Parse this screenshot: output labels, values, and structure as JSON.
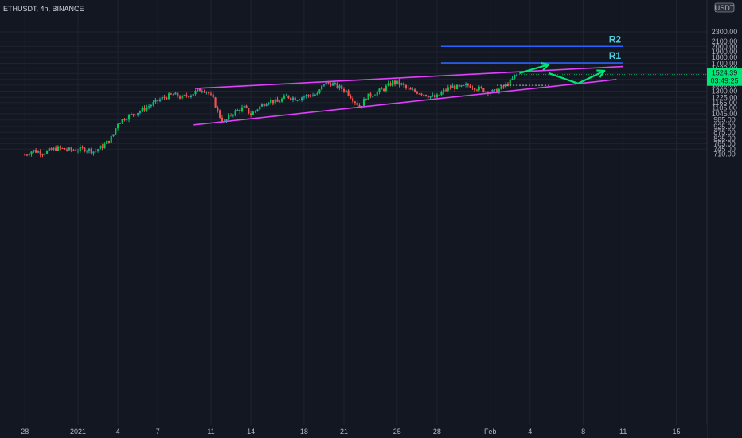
{
  "header": {
    "symbol_line": "ETHUSDT, 4h, BINANCE"
  },
  "chart_data": {
    "type": "candlestick",
    "title": "ETHUSDT, 4h, BINANCE",
    "currency": "USDT",
    "y_scale": "log",
    "ylim": [
      680,
      2550
    ],
    "y_ticks": [
      2300,
      2100,
      2000,
      1900,
      1800,
      1700,
      1620,
      1540,
      1460,
      1380,
      1300,
      1225,
      1165,
      1105,
      1045,
      985,
      925,
      875,
      825,
      785,
      745,
      710
    ],
    "x_ticks": [
      {
        "label": "28",
        "day": -4
      },
      {
        "label": "2021",
        "day": 0
      },
      {
        "label": "4",
        "day": 3
      },
      {
        "label": "7",
        "day": 6
      },
      {
        "label": "11",
        "day": 10
      },
      {
        "label": "14",
        "day": 13
      },
      {
        "label": "18",
        "day": 17
      },
      {
        "label": "21",
        "day": 20
      },
      {
        "label": "25",
        "day": 24
      },
      {
        "label": "28",
        "day": 27
      },
      {
        "label": "Feb",
        "day": 31
      },
      {
        "label": "4",
        "day": 34
      },
      {
        "label": "8",
        "day": 38
      },
      {
        "label": "11",
        "day": 41
      },
      {
        "label": "15",
        "day": 45
      }
    ],
    "current_price": "1524.39",
    "countdown": "03:49:25",
    "price_path": [
      {
        "day": -4.0,
        "price": 705
      },
      {
        "day": -3.4,
        "price": 735
      },
      {
        "day": -2.6,
        "price": 718
      },
      {
        "day": -1.6,
        "price": 752
      },
      {
        "day": -0.6,
        "price": 738
      },
      {
        "day": 0.6,
        "price": 746
      },
      {
        "day": 1.2,
        "price": 728
      },
      {
        "day": 2.0,
        "price": 775
      },
      {
        "day": 2.6,
        "price": 840
      },
      {
        "day": 3.0,
        "price": 960
      },
      {
        "day": 3.6,
        "price": 1010
      },
      {
        "day": 4.6,
        "price": 1070
      },
      {
        "day": 5.6,
        "price": 1150
      },
      {
        "day": 6.4,
        "price": 1220
      },
      {
        "day": 7.2,
        "price": 1260
      },
      {
        "day": 7.8,
        "price": 1220
      },
      {
        "day": 8.6,
        "price": 1270
      },
      {
        "day": 9.3,
        "price": 1330
      },
      {
        "day": 9.7,
        "price": 1300
      },
      {
        "day": 10.2,
        "price": 1190
      },
      {
        "day": 10.6,
        "price": 1030
      },
      {
        "day": 11.0,
        "price": 960
      },
      {
        "day": 11.5,
        "price": 1040
      },
      {
        "day": 12.0,
        "price": 1080
      },
      {
        "day": 12.5,
        "price": 1110
      },
      {
        "day": 13.0,
        "price": 1040
      },
      {
        "day": 13.5,
        "price": 1100
      },
      {
        "day": 14.3,
        "price": 1190
      },
      {
        "day": 15.0,
        "price": 1170
      },
      {
        "day": 15.7,
        "price": 1240
      },
      {
        "day": 16.4,
        "price": 1210
      },
      {
        "day": 17.2,
        "price": 1245
      },
      {
        "day": 18.0,
        "price": 1260
      },
      {
        "day": 18.5,
        "price": 1400
      },
      {
        "day": 19.0,
        "price": 1405
      },
      {
        "day": 19.5,
        "price": 1360
      },
      {
        "day": 20.2,
        "price": 1300
      },
      {
        "day": 20.7,
        "price": 1200
      },
      {
        "day": 21.2,
        "price": 1120
      },
      {
        "day": 21.7,
        "price": 1230
      },
      {
        "day": 22.4,
        "price": 1280
      },
      {
        "day": 23.0,
        "price": 1330
      },
      {
        "day": 23.7,
        "price": 1420
      },
      {
        "day": 24.3,
        "price": 1390
      },
      {
        "day": 24.9,
        "price": 1310
      },
      {
        "day": 25.6,
        "price": 1290
      },
      {
        "day": 26.3,
        "price": 1250
      },
      {
        "day": 26.9,
        "price": 1220
      },
      {
        "day": 27.5,
        "price": 1300
      },
      {
        "day": 28.1,
        "price": 1360
      },
      {
        "day": 28.7,
        "price": 1340
      },
      {
        "day": 29.4,
        "price": 1380
      },
      {
        "day": 30.0,
        "price": 1340
      },
      {
        "day": 30.7,
        "price": 1300
      },
      {
        "day": 31.3,
        "price": 1290
      },
      {
        "day": 31.9,
        "price": 1340
      },
      {
        "day": 32.5,
        "price": 1420
      },
      {
        "day": 33.0,
        "price": 1524
      }
    ],
    "lines": {
      "wedge_upper": {
        "color": "#e040fb",
        "from": {
          "day": 8.8,
          "price": 1335
        },
        "to": {
          "day": 41.0,
          "price": 1648
        }
      },
      "wedge_lower": {
        "color": "#e040fb",
        "from": {
          "day": 8.7,
          "price": 940
        },
        "to": {
          "day": 40.5,
          "price": 1455
        }
      },
      "r1": {
        "label": "R1",
        "price": 1705,
        "from_day": 27.3,
        "to_day": 41.0,
        "color": "#2962ff"
      },
      "r2": {
        "label": "R2",
        "price": 2000,
        "from_day": 27.3,
        "to_day": 41.0,
        "color": "#2962ff"
      },
      "dotted_level": {
        "price": 1375,
        "from_day": 31.5,
        "to_day": 35.5
      }
    },
    "arrows": [
      {
        "color": "#00e676",
        "points": [
          {
            "day": 33.2,
            "price": 1545
          },
          {
            "day": 35.4,
            "price": 1680
          }
        ]
      },
      {
        "color": "#00e676",
        "points": [
          {
            "day": 35.4,
            "price": 1545
          },
          {
            "day": 37.6,
            "price": 1400
          },
          {
            "day": 39.6,
            "price": 1580
          }
        ]
      }
    ],
    "colors": {
      "up": "#26a69a",
      "bright_up": "#00c853",
      "down": "#ef5350",
      "r_label": "#4dd0e1",
      "badge": "#00e676"
    }
  }
}
